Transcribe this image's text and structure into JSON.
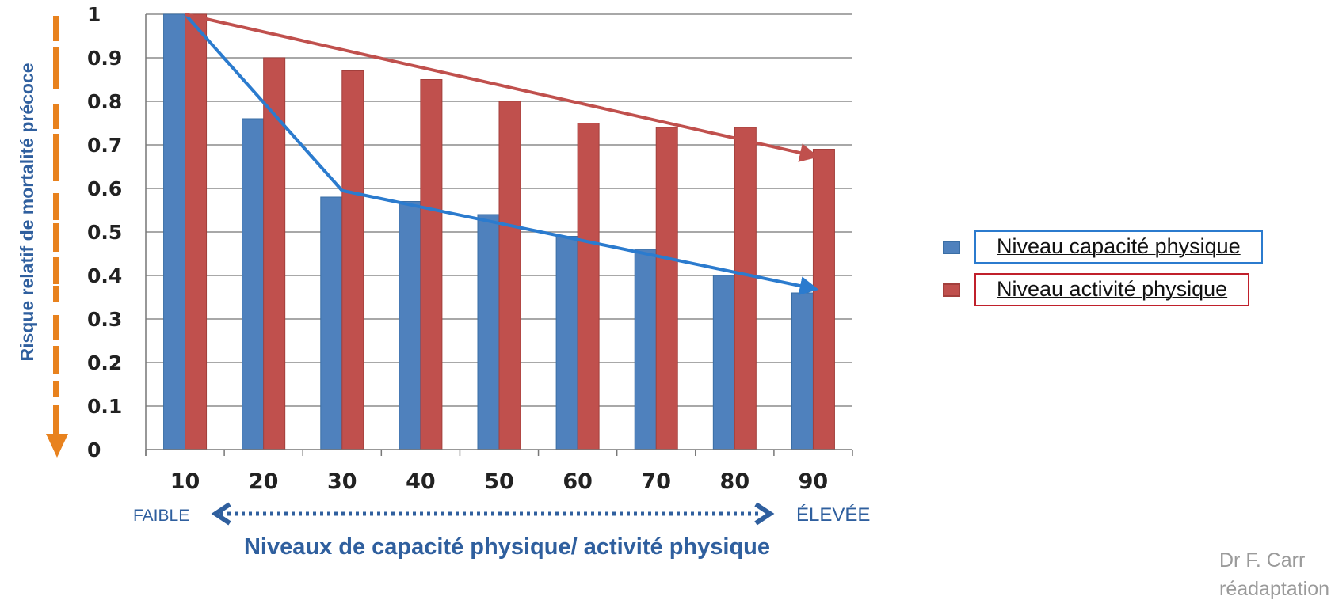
{
  "chart_data": {
    "type": "bar",
    "categories": [
      "10",
      "20",
      "30",
      "40",
      "50",
      "60",
      "70",
      "80",
      "90"
    ],
    "series": [
      {
        "name": "Niveau capacité physique",
        "color": "#4f81bd",
        "values": [
          1.0,
          0.76,
          0.58,
          0.57,
          0.54,
          0.49,
          0.46,
          0.4,
          0.36
        ]
      },
      {
        "name": "Niveau activité physique",
        "color": "#c0504d",
        "values": [
          1.0,
          0.9,
          0.87,
          0.85,
          0.8,
          0.75,
          0.74,
          0.74,
          0.69
        ]
      }
    ],
    "trend_lines": [
      {
        "series": "Niveau capacité physique",
        "color": "#2b7bce",
        "points": [
          [
            10,
            1.0
          ],
          [
            30,
            0.595
          ],
          [
            90,
            0.37
          ]
        ]
      },
      {
        "series": "Niveau activité physique",
        "color": "#c0504d",
        "points": [
          [
            10,
            1.0
          ],
          [
            90,
            0.675
          ]
        ]
      }
    ],
    "ylabel": "Risque relatif de mortalité précoce",
    "xlabel": "Niveaux de capacité physique/ activité physique",
    "x_low_label": "FAIBLE",
    "x_high_label": "ÉLEVÉE",
    "yticks": [
      "0",
      "0.1",
      "0.2",
      "0.3",
      "0.4",
      "0.5",
      "0.6",
      "0.7",
      "0.8",
      "0.9",
      "1"
    ],
    "ylim": [
      0,
      1
    ],
    "grid": true,
    "legend_position": "right",
    "colors": {
      "axis_text": "#222222",
      "label_blue": "#2f5f9e",
      "orange_accent": "#e8821e",
      "grid": "#8c8c8c"
    }
  },
  "legend": [
    {
      "label": "Niveau capacité physique",
      "color": "#4f81bd",
      "border": "#2b7bce"
    },
    {
      "label": "Niveau activité physique",
      "color": "#c0504d",
      "border": "#c0202b"
    }
  ],
  "footer": {
    "line1": "Dr F.  Carr",
    "line2": "réadaptation"
  }
}
